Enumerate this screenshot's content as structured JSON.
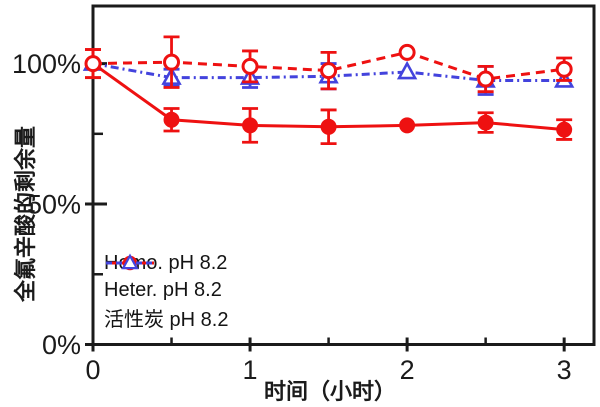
{
  "chart_data": {
    "type": "line",
    "title": "",
    "xlabel": "时间（小时）",
    "ylabel": "全氟辛酸的剩余量",
    "grid": false,
    "legend_position": "inside-bottom-left",
    "x": [
      0,
      0.5,
      1,
      1.5,
      2,
      2.5,
      3
    ],
    "xlim": [
      0,
      3.19
    ],
    "ylim": [
      0,
      120.5
    ],
    "x_ticks": [
      {
        "v": 0,
        "label": "0"
      },
      {
        "v": 1,
        "label": "1"
      },
      {
        "v": 2,
        "label": "2"
      },
      {
        "v": 3,
        "label": "3"
      }
    ],
    "x_minor_ticks": [
      0.5,
      1.5,
      2.5
    ],
    "y_ticks": [
      {
        "v": 0,
        "label": "0%"
      },
      {
        "v": 50,
        "label": "50%"
      },
      {
        "v": 100,
        "label": "100%"
      }
    ],
    "y_minor_ticks": [
      25,
      75
    ],
    "series": [
      {
        "name": "Homo. pH 8.2",
        "color": "#ee1111",
        "line_style": "dashed",
        "marker": "open-circle",
        "zorder": 3,
        "values": [
          100,
          100.5,
          99,
          97.5,
          104,
          94.5,
          98
        ],
        "errors": [
          5,
          9,
          5.5,
          6.5,
          0,
          4.5,
          4
        ]
      },
      {
        "name": "Heter. pH 8.2",
        "color": "#ee1111",
        "line_style": "solid",
        "marker": "filled-circle",
        "zorder": 2,
        "values": [
          100,
          80,
          78,
          77.5,
          78,
          79,
          76.5
        ],
        "errors": [
          5,
          4,
          6,
          6,
          0,
          3.5,
          3.5
        ]
      },
      {
        "name": "活性炭 pH 8.2",
        "color": "#4343dd",
        "line_style": "dashdot",
        "marker": "open-triangle",
        "zorder": 1,
        "values": [
          100,
          95,
          95,
          95.5,
          97,
          94,
          94
        ],
        "errors": [
          0,
          3,
          3.5,
          4.5,
          0,
          5,
          0
        ]
      }
    ]
  }
}
